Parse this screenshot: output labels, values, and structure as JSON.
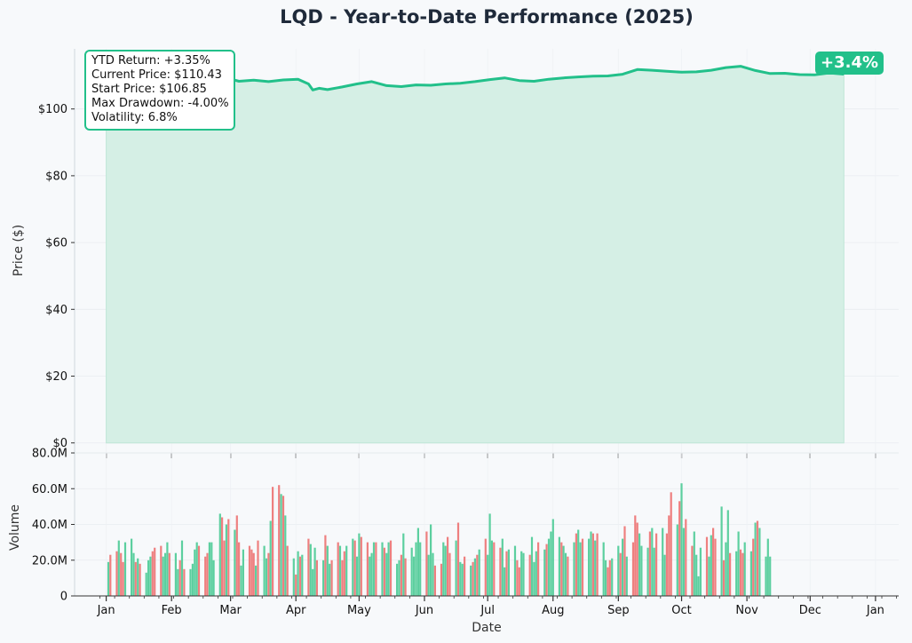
{
  "colors": {
    "accent": "#22c08a",
    "area_fill": "#d5efe5",
    "up_bar": "#5ccf9f",
    "down_bar": "#ee7f7f",
    "title": "#1f2a3a",
    "background": "#f7f9fb"
  },
  "chart_data": [
    {
      "type": "area",
      "title": "LQD - Year-to-Date Performance (2025)",
      "xlabel": "",
      "ylabel": "Price ($)",
      "ylim": [
        -3,
        118
      ],
      "yticks": [
        0,
        20,
        40,
        60,
        80,
        100
      ],
      "ytick_labels": [
        "$0",
        "$20",
        "$40",
        "$60",
        "$80",
        "$100"
      ],
      "grid": true,
      "series": [
        {
          "x": [
            "2025-01-01",
            "2025-01-08",
            "2025-01-15",
            "2025-01-22",
            "2025-01-29",
            "2025-02-05",
            "2025-02-12",
            "2025-02-19",
            "2025-02-26",
            "2025-03-05",
            "2025-03-12",
            "2025-03-19",
            "2025-03-26",
            "2025-04-02",
            "2025-04-07",
            "2025-04-09",
            "2025-04-12",
            "2025-04-16",
            "2025-04-23",
            "2025-04-30",
            "2025-05-07",
            "2025-05-14",
            "2025-05-21",
            "2025-05-28",
            "2025-06-04",
            "2025-06-11",
            "2025-06-18",
            "2025-06-25",
            "2025-07-02",
            "2025-07-09",
            "2025-07-16",
            "2025-07-23",
            "2025-07-30",
            "2025-08-06",
            "2025-08-13",
            "2025-08-20",
            "2025-08-27",
            "2025-09-03",
            "2025-09-10",
            "2025-09-17",
            "2025-09-24",
            "2025-10-01",
            "2025-10-08",
            "2025-10-15",
            "2025-10-22",
            "2025-10-29",
            "2025-11-05",
            "2025-11-12",
            "2025-11-19",
            "2025-11-26",
            "2025-12-03",
            "2025-12-10",
            "2025-12-17"
          ],
          "values": [
            106.85,
            107.5,
            108.0,
            108.6,
            109.0,
            109.4,
            109.8,
            110.1,
            109.5,
            108.3,
            108.6,
            108.2,
            108.7,
            108.9,
            107.5,
            105.7,
            106.2,
            105.8,
            106.6,
            107.5,
            108.2,
            107.0,
            106.7,
            107.2,
            107.1,
            107.5,
            107.7,
            108.2,
            108.8,
            109.3,
            108.5,
            108.3,
            108.9,
            109.3,
            109.6,
            109.8,
            109.9,
            110.4,
            111.8,
            111.6,
            111.3,
            111.0,
            111.1,
            111.6,
            112.4,
            112.8,
            111.5,
            110.6,
            110.7,
            110.3,
            110.2,
            110.8,
            110.43
          ]
        }
      ]
    },
    {
      "type": "bar",
      "xlabel": "Date",
      "ylabel": "Volume",
      "ylim": [
        0,
        80000000
      ],
      "yticks": [
        0,
        20000000,
        40000000,
        60000000,
        80000000
      ],
      "ytick_labels": [
        "0",
        "20.0M",
        "40.0M",
        "60.0M",
        "80.0M"
      ],
      "x_tick_labels": [
        "Jan",
        "Feb",
        "Mar",
        "Apr",
        "May",
        "Jun",
        "Jul",
        "Aug",
        "Sep",
        "Oct",
        "Nov",
        "Dec",
        "Jan"
      ],
      "grid": true,
      "series": [
        {
          "volumes_millions": [
            19,
            23,
            25,
            31,
            24,
            19,
            30,
            32,
            24,
            19,
            21,
            18,
            13,
            20,
            22,
            25,
            27,
            28,
            22,
            24,
            30,
            24,
            24,
            15,
            20,
            31,
            15,
            15,
            18,
            26,
            30,
            28,
            22,
            24,
            30,
            30,
            20,
            46,
            44,
            31,
            40,
            43,
            37,
            45,
            30,
            17,
            26,
            28,
            26,
            24,
            17,
            31,
            28,
            21,
            24,
            42,
            61,
            62,
            57,
            56,
            45,
            28,
            21,
            12,
            25,
            22,
            23,
            32,
            29,
            15,
            27,
            20,
            20,
            34,
            28,
            18,
            20,
            30,
            28,
            20,
            25,
            28,
            32,
            31,
            22,
            35,
            33,
            30,
            22,
            24,
            30,
            30,
            30,
            27,
            24,
            30,
            31,
            18,
            20,
            23,
            35,
            21,
            27,
            22,
            30,
            38,
            30,
            36,
            23,
            40,
            24,
            17,
            18,
            30,
            28,
            33,
            24,
            31,
            41,
            19,
            18,
            22,
            17,
            19,
            21,
            23,
            26,
            32,
            23,
            46,
            31,
            30,
            27,
            32,
            16,
            25,
            26,
            28,
            20,
            16,
            25,
            24,
            23,
            33,
            19,
            25,
            30,
            26,
            29,
            32,
            36,
            43,
            33,
            30,
            28,
            24,
            22,
            30,
            35,
            37,
            30,
            32,
            32,
            36,
            35,
            31,
            35,
            30,
            20,
            16,
            20,
            21,
            28,
            24,
            32,
            39,
            22,
            30,
            45,
            41,
            35,
            28,
            27,
            36,
            38,
            27,
            35,
            38,
            23,
            35,
            45,
            58,
            40,
            53,
            63,
            38,
            43,
            28,
            36,
            23,
            11,
            27,
            33,
            22,
            34,
            38,
            32,
            50,
            20,
            30,
            48,
            24,
            25,
            36,
            26,
            24,
            30,
            25,
            32,
            41,
            42,
            38,
            22,
            32,
            22
          ],
          "up": [
            1,
            0,
            0,
            1,
            0,
            0,
            1,
            1,
            1,
            0,
            1,
            0,
            1,
            1,
            1,
            0,
            0,
            0,
            1,
            1,
            1,
            0,
            1,
            1,
            0,
            1,
            0,
            1,
            1,
            1,
            1,
            0,
            0,
            0,
            1,
            1,
            1,
            1,
            0,
            0,
            1,
            0,
            1,
            0,
            0,
            1,
            1,
            0,
            0,
            0,
            1,
            0,
            1,
            1,
            0,
            1,
            0,
            0,
            1,
            0,
            1,
            0,
            1,
            0,
            1,
            0,
            1,
            0,
            1,
            1,
            1,
            0,
            1,
            0,
            1,
            1,
            0,
            0,
            1,
            0,
            0,
            1,
            1,
            0,
            1,
            1,
            0,
            0,
            1,
            1,
            1,
            0,
            1,
            0,
            1,
            1,
            0,
            1,
            1,
            0,
            1,
            0,
            1,
            1,
            1,
            1,
            1,
            0,
            1,
            1,
            1,
            0,
            0,
            1,
            1,
            0,
            0,
            1,
            0,
            1,
            1,
            0,
            1,
            0,
            1,
            0,
            1,
            0,
            1,
            1,
            1,
            0,
            0,
            1,
            1,
            0,
            1,
            1,
            0,
            0,
            1,
            1,
            0,
            1,
            1,
            1,
            0,
            1,
            0,
            1,
            1,
            1,
            1,
            0,
            1,
            1,
            0,
            1,
            0,
            1,
            1,
            0,
            1,
            1,
            0,
            1,
            0,
            1,
            1,
            0,
            0,
            1,
            1,
            0,
            1,
            0,
            1,
            0,
            0,
            0,
            1,
            1,
            1,
            0,
            1,
            1,
            0,
            1,
            1,
            0,
            0,
            0,
            1,
            0,
            1,
            1,
            0,
            0,
            1,
            1,
            1,
            1,
            0,
            1,
            1,
            0,
            0,
            1,
            0,
            1,
            1,
            0,
            1,
            1,
            0,
            0,
            1,
            1,
            0,
            1,
            0,
            1,
            1,
            1,
            1
          ]
        }
      ]
    }
  ],
  "stats_box": {
    "lines": [
      "YTD Return: +3.35%",
      "Current Price: $110.43",
      "Start Price: $106.85",
      "Max Drawdown: -4.00%",
      "Volatility: 6.8%"
    ]
  },
  "badge": {
    "text": "+3.4%"
  }
}
